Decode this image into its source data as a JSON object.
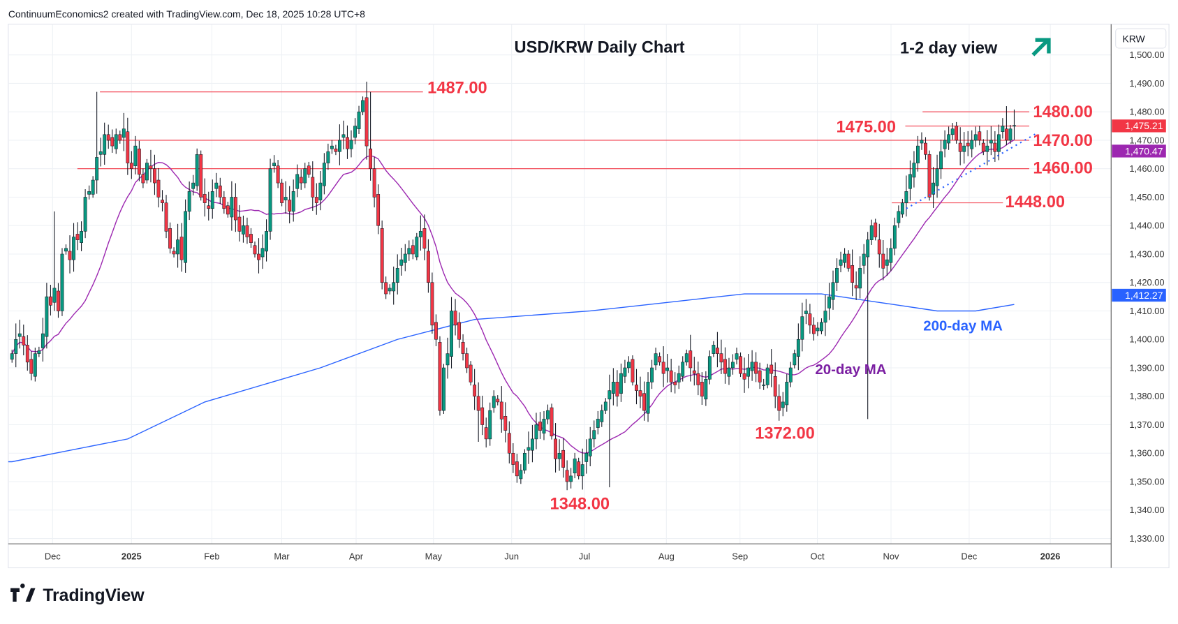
{
  "header": {
    "attribution": "ContinuumEconomics2 created with TradingView.com, Dec 18, 2025 10:28 UTC+8"
  },
  "footer": {
    "brand": "TradingView"
  },
  "colors": {
    "up": "#089981",
    "down": "#f23645",
    "ma20": "#9c27b0",
    "ma200": "#2962ff",
    "level": "#f23645",
    "arrow": "#089981"
  },
  "chart_data": {
    "type": "candlestick",
    "title": "USD/KRW Daily Chart",
    "subtitle": "1-2 day view",
    "view_direction": "up",
    "currency": "KRW",
    "ylim": [
      1328,
      1505
    ],
    "yticks": [
      "1,330.00",
      "1,340.00",
      "1,350.00",
      "1,360.00",
      "1,370.00",
      "1,380.00",
      "1,390.00",
      "1,400.00",
      "1,410.00",
      "1,420.00",
      "1,430.00",
      "1,440.00",
      "1,450.00",
      "1,460.00",
      "1,470.00",
      "1,480.00",
      "1,490.00",
      "1,500.00"
    ],
    "xticks": [
      "Dec",
      "2025",
      "Feb",
      "Mar",
      "Apr",
      "May",
      "Jun",
      "Jul",
      "Aug",
      "Sep",
      "Oct",
      "Nov",
      "Dec",
      "2026"
    ],
    "xtick_bold": [
      "2025",
      "2026"
    ],
    "closes": [
      1395,
      1400,
      1402,
      1398,
      1392,
      1388,
      1395,
      1396,
      1402,
      1415,
      1412,
      1418,
      1410,
      1430,
      1432,
      1428,
      1436,
      1435,
      1438,
      1450,
      1452,
      1456,
      1464,
      1466,
      1472,
      1470,
      1468,
      1472,
      1470,
      1474,
      1462,
      1460,
      1468,
      1458,
      1455,
      1462,
      1460,
      1455,
      1450,
      1448,
      1438,
      1432,
      1430,
      1435,
      1428,
      1445,
      1452,
      1455,
      1465,
      1450,
      1448,
      1446,
      1452,
      1455,
      1450,
      1446,
      1444,
      1450,
      1442,
      1438,
      1440,
      1436,
      1434,
      1430,
      1428,
      1432,
      1438,
      1460,
      1462,
      1455,
      1448,
      1450,
      1445,
      1452,
      1458,
      1455,
      1460,
      1458,
      1450,
      1448,
      1455,
      1462,
      1466,
      1468,
      1466,
      1470,
      1472,
      1467,
      1470,
      1475,
      1480,
      1484,
      1468,
      1460,
      1450,
      1440,
      1420,
      1416,
      1418,
      1420,
      1425,
      1428,
      1430,
      1432,
      1430,
      1436,
      1438,
      1432,
      1420,
      1405,
      1400,
      1375,
      1390,
      1395,
      1410,
      1405,
      1400,
      1395,
      1390,
      1385,
      1380,
      1375,
      1370,
      1365,
      1375,
      1380,
      1378,
      1372,
      1368,
      1360,
      1356,
      1352,
      1354,
      1360,
      1362,
      1365,
      1370,
      1368,
      1372,
      1375,
      1366,
      1358,
      1360,
      1355,
      1350,
      1352,
      1358,
      1352,
      1356,
      1360,
      1365,
      1368,
      1372,
      1375,
      1378,
      1382,
      1385,
      1380,
      1388,
      1390,
      1392,
      1385,
      1382,
      1380,
      1375,
      1385,
      1390,
      1395,
      1392,
      1388,
      1390,
      1385,
      1384,
      1388,
      1392,
      1395,
      1390,
      1388,
      1384,
      1380,
      1386,
      1394,
      1398,
      1395,
      1392,
      1388,
      1390,
      1392,
      1395,
      1388,
      1386,
      1390,
      1392,
      1388,
      1385,
      1384,
      1390,
      1388,
      1380,
      1375,
      1378,
      1385,
      1390,
      1395,
      1400,
      1408,
      1410,
      1405,
      1402,
      1404,
      1406,
      1410,
      1415,
      1420,
      1425,
      1428,
      1430,
      1425,
      1420,
      1418,
      1425,
      1430,
      1435,
      1440,
      1436,
      1430,
      1425,
      1428,
      1432,
      1440,
      1445,
      1448,
      1452,
      1458,
      1462,
      1468,
      1470,
      1465,
      1450,
      1455,
      1460,
      1466,
      1470,
      1472,
      1474,
      1470,
      1466,
      1468,
      1468,
      1470,
      1472,
      1470,
      1466,
      1468,
      1470,
      1466,
      1472,
      1475,
      1470,
      1474,
      1475.21
    ],
    "extremes": {
      "high_dec_2024": 1487,
      "high_apr_2025": 1487,
      "low_jun_2025": 1348,
      "low_sep_2025": 1372,
      "high_dec_2025": 1482
    },
    "ma200_points": [
      [
        0,
        1357
      ],
      [
        30,
        1365
      ],
      [
        50,
        1378
      ],
      [
        80,
        1390
      ],
      [
        100,
        1400
      ],
      [
        120,
        1407
      ],
      [
        150,
        1410
      ],
      [
        170,
        1413
      ],
      [
        190,
        1416
      ],
      [
        210,
        1416
      ],
      [
        225,
        1413
      ],
      [
        240,
        1410
      ],
      [
        250,
        1410
      ],
      [
        260,
        1412.27
      ]
    ],
    "last": {
      "price": "1,475.21",
      "ma20": "1,470.47",
      "ma200": "1,412.27"
    },
    "series_labels": {
      "ma20": "20-day MA",
      "ma200": "200-day MA"
    },
    "levels": [
      {
        "label": "1487.00",
        "value": 1487
      },
      {
        "label": "1480.00",
        "value": 1480
      },
      {
        "label": "1475.00",
        "value": 1475
      },
      {
        "label": "1470.00",
        "value": 1470
      },
      {
        "label": "1460.00",
        "value": 1460
      },
      {
        "label": "1448.00",
        "value": 1448
      }
    ],
    "annotations": {
      "low1": "1372.00",
      "low2": "1348.00"
    },
    "trendline": {
      "from": [
        232,
        1446
      ],
      "to": [
        262,
        1471
      ],
      "style": "dotted"
    }
  }
}
